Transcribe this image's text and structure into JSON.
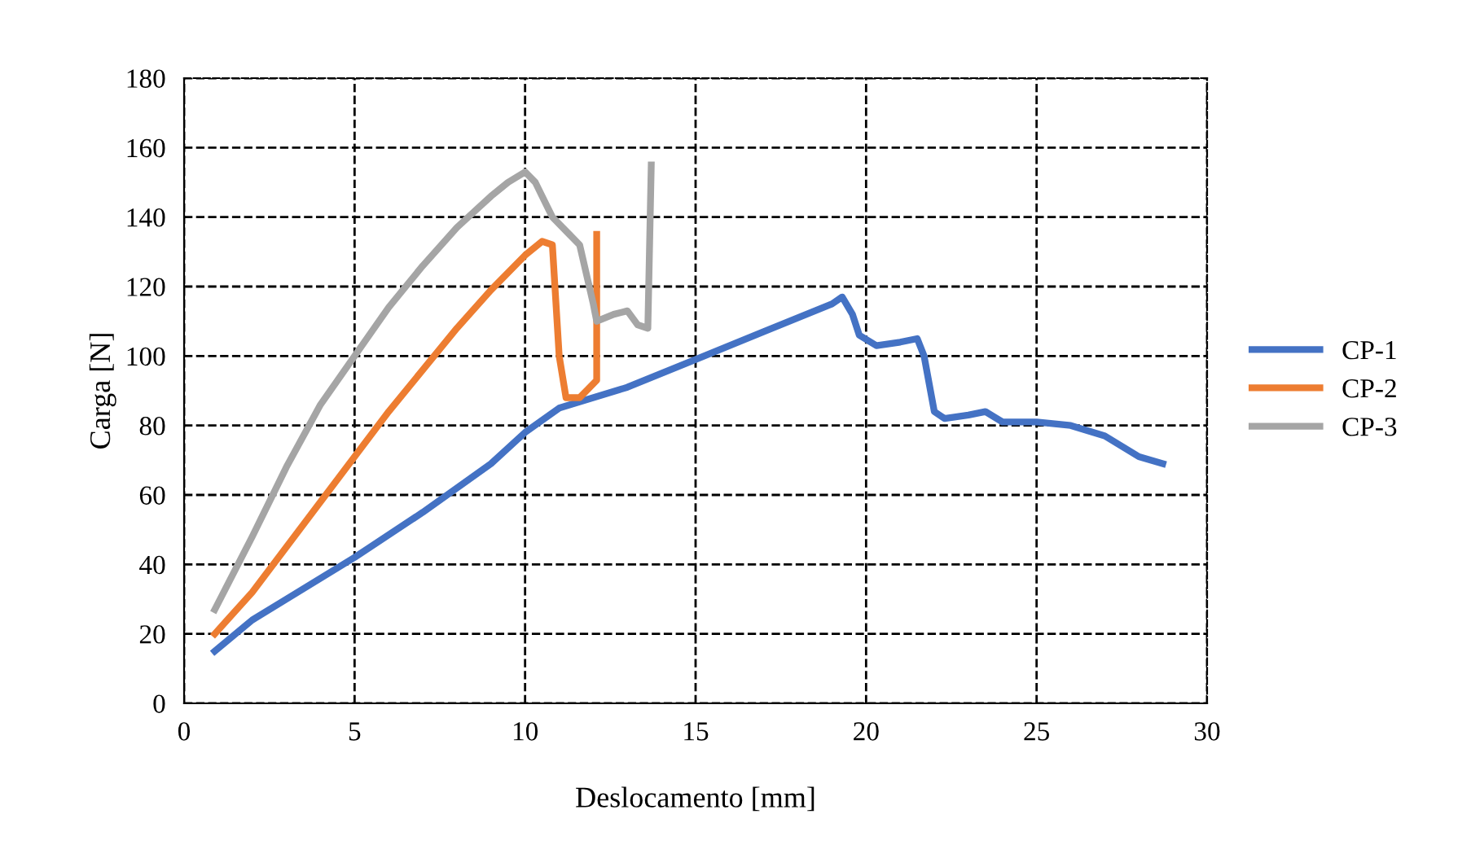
{
  "chart_data": {
    "type": "line",
    "xlabel": "Deslocamento [mm]",
    "ylabel": "Carga [N]",
    "xlim": [
      0,
      30
    ],
    "xticks": [
      0,
      5,
      10,
      15,
      20,
      25,
      30
    ],
    "ylim": [
      0,
      180
    ],
    "yticks": [
      0,
      20,
      40,
      60,
      80,
      100,
      120,
      140,
      160,
      180
    ],
    "grid": true,
    "legend": "right",
    "series": [
      {
        "name": "CP-1",
        "color": "#4472c4",
        "x": [
          0.9,
          2,
          3,
          5,
          7,
          9,
          10,
          11,
          13,
          15,
          17,
          19,
          19.3,
          19.6,
          19.8,
          20.3,
          21,
          21.5,
          21.7,
          22,
          22.3,
          23,
          23.5,
          24,
          25,
          26,
          27,
          27.5,
          28,
          28.7
        ],
        "values": [
          15,
          24,
          30,
          42,
          55,
          69,
          78,
          85,
          91,
          99,
          107,
          115,
          117,
          112,
          106,
          103,
          104,
          105,
          100,
          84,
          82,
          83,
          84,
          81,
          81,
          80,
          77,
          74,
          71,
          69
        ]
      },
      {
        "name": "CP-2",
        "color": "#ed7d31",
        "x": [
          0.9,
          2,
          3,
          4,
          5,
          6,
          7,
          8,
          9,
          10,
          10.5,
          10.8,
          11,
          11.2,
          11.6,
          12.1,
          12.1
        ],
        "values": [
          20,
          32,
          45,
          58,
          71,
          84,
          96,
          108,
          119,
          129,
          133,
          132,
          100,
          88,
          88,
          93,
          135
        ]
      },
      {
        "name": "CP-3",
        "color": "#a5a5a5",
        "x": [
          0.9,
          2,
          3,
          4,
          5,
          6,
          7,
          8,
          9,
          9.5,
          10,
          10.3,
          10.8,
          11.3,
          11.6,
          12,
          12.1,
          12.6,
          13,
          13.3,
          13.6,
          13.7
        ],
        "values": [
          27,
          48,
          68,
          86,
          100,
          114,
          126,
          137,
          146,
          150,
          153,
          150,
          140,
          135,
          132,
          115,
          110,
          112,
          113,
          109,
          108,
          155
        ]
      }
    ]
  }
}
